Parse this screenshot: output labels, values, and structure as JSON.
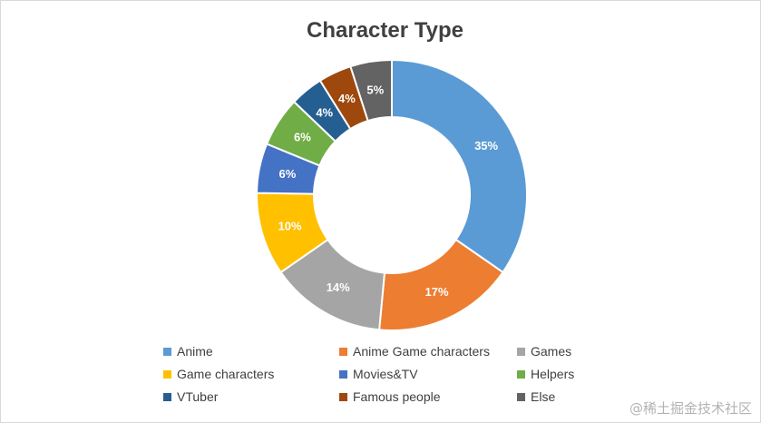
{
  "chart_data": {
    "type": "pie",
    "subtype": "donut",
    "title": "Character Type",
    "legend_position": "bottom",
    "categories": [
      "Anime",
      "Anime Game characters",
      "Games",
      "Game characters",
      "Movies&TV",
      "Helpers",
      "VTuber",
      "Famous people",
      "Else"
    ],
    "values": [
      35,
      17,
      14,
      10,
      6,
      6,
      4,
      4,
      5
    ],
    "value_labels": [
      "35%",
      "17%",
      "14%",
      "10%",
      "6%",
      "6%",
      "4%",
      "4%",
      "5%"
    ],
    "colors": [
      "#5b9bd5",
      "#ed7d31",
      "#a5a5a5",
      "#ffc000",
      "#4472c4",
      "#70ad47",
      "#255e91",
      "#9e480e",
      "#636363"
    ]
  },
  "watermark": "@稀土掘金技术社区"
}
